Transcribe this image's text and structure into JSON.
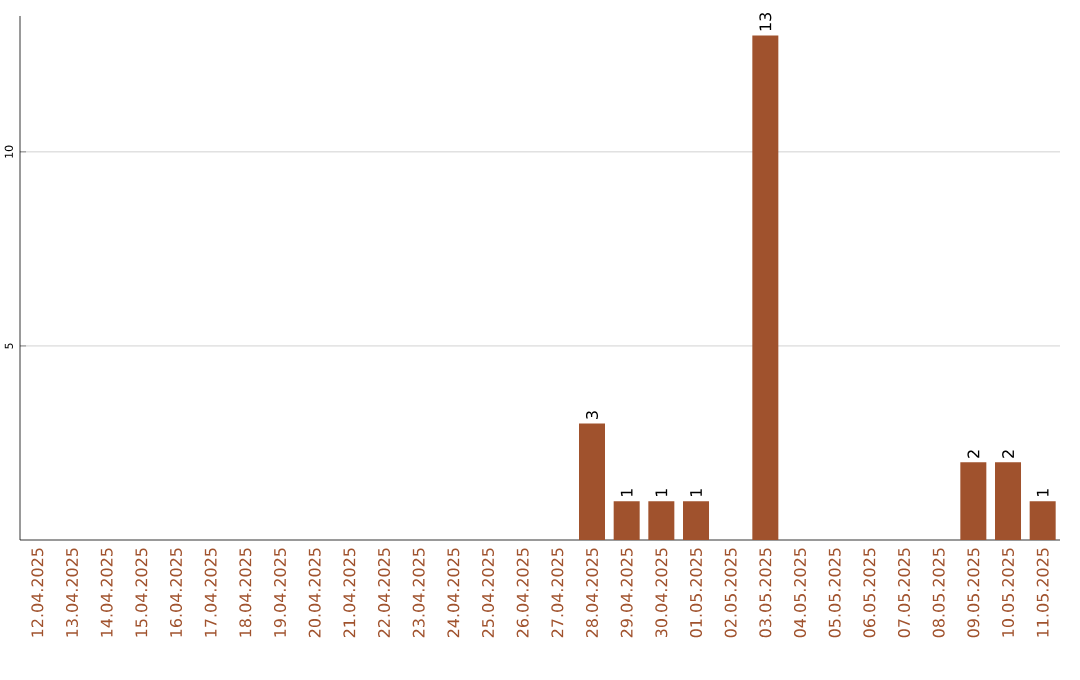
{
  "chart_data": {
    "type": "bar",
    "categories": [
      "12.04.2025",
      "13.04.2025",
      "14.04.2025",
      "15.04.2025",
      "16.04.2025",
      "17.04.2025",
      "18.04.2025",
      "19.04.2025",
      "20.04.2025",
      "21.04.2025",
      "22.04.2025",
      "23.04.2025",
      "24.04.2025",
      "25.04.2025",
      "26.04.2025",
      "27.04.2025",
      "28.04.2025",
      "29.04.2025",
      "30.04.2025",
      "01.05.2025",
      "02.05.2025",
      "03.05.2025",
      "04.05.2025",
      "05.05.2025",
      "06.05.2025",
      "07.05.2025",
      "08.05.2025",
      "09.05.2025",
      "10.05.2025",
      "11.05.2025"
    ],
    "values": [
      0,
      0,
      0,
      0,
      0,
      0,
      0,
      0,
      0,
      0,
      0,
      0,
      0,
      0,
      0,
      0,
      3,
      1,
      1,
      1,
      0,
      13,
      0,
      0,
      0,
      0,
      0,
      2,
      2,
      1
    ],
    "value_labels": [
      null,
      null,
      null,
      null,
      null,
      null,
      null,
      null,
      null,
      null,
      null,
      null,
      null,
      null,
      null,
      null,
      "3",
      "1",
      "1",
      "1",
      null,
      "13",
      null,
      null,
      null,
      null,
      null,
      "2",
      "2",
      "1"
    ],
    "color": "#a0522d",
    "ylim": [
      0,
      13.5
    ],
    "yticks": [
      5,
      10
    ],
    "grid": "y"
  }
}
